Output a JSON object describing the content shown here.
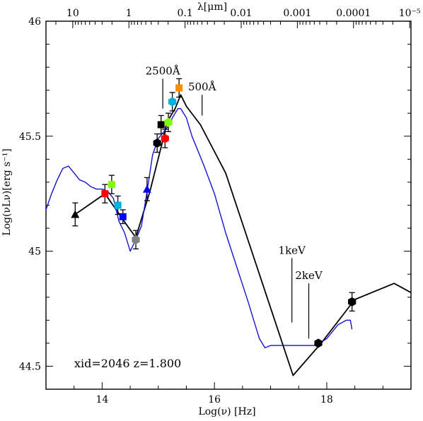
{
  "chart_data": {
    "type": "scatter",
    "xlabel": "Log(ν) [Hz]",
    "ylabel": "Log(νLν)[erg s⁻¹]",
    "top_axis_label": "λ[μm]",
    "xlim": [
      13.0,
      19.5
    ],
    "ylim": [
      44.4,
      46.0
    ],
    "x_ticks": [
      "14",
      "16",
      "18"
    ],
    "y_ticks": [
      "44.5",
      "45",
      "45.5",
      "46"
    ],
    "top_ticks": [
      "10",
      "1",
      "0.1",
      "0.01",
      "0.001",
      "0.0001",
      "10⁻⁵"
    ],
    "annotation": "xid=2046 z=1.800",
    "markers": [
      {
        "label": "2500Å",
        "x": 15.08,
        "y_from": 45.75,
        "y_to": 45.62
      },
      {
        "label": "500Å",
        "x": 15.78,
        "y_from": 45.68,
        "y_to": 45.59
      },
      {
        "label": "1keV",
        "x": 17.38,
        "y_from": 44.97,
        "y_to": 44.69
      },
      {
        "label": "2keV",
        "x": 17.68,
        "y_from": 44.86,
        "y_to": 44.62
      }
    ],
    "grid": false,
    "colors": {
      "model": "#000000",
      "template": "#1414d2",
      "error_bar": "#000000"
    },
    "series": [
      {
        "x": [
          13.52,
          14.05,
          14.45,
          14.6,
          14.85,
          15.1,
          15.15,
          15.3,
          15.4,
          15.5,
          15.75,
          16.2,
          16.8,
          17.4,
          17.9,
          18.5,
          19.2,
          19.5
        ],
        "y": [
          45.16,
          45.25,
          45.11,
          45.06,
          45.26,
          45.5,
          45.56,
          45.62,
          45.68,
          45.63,
          45.55,
          45.34,
          44.9,
          44.46,
          44.6,
          44.79,
          44.86,
          44.82
        ]
      },
      {
        "x": [
          13.0,
          13.1,
          13.2,
          13.3,
          13.4,
          13.5,
          13.6,
          13.7,
          13.8,
          13.9,
          14.0,
          14.1,
          14.2,
          14.3,
          14.4,
          14.5,
          14.6,
          14.7,
          14.8,
          14.9,
          15.0,
          15.1,
          15.2,
          15.25,
          15.3,
          15.35,
          15.4,
          15.5,
          15.6,
          15.8,
          16.0,
          16.2,
          16.4,
          16.6,
          16.7,
          16.8,
          16.9,
          17.0,
          17.2,
          17.4,
          17.6,
          17.8,
          18.0,
          18.2,
          18.35,
          18.42,
          18.45
        ],
        "y": [
          45.18,
          45.25,
          45.31,
          45.36,
          45.37,
          45.34,
          45.31,
          45.3,
          45.28,
          45.27,
          45.27,
          45.26,
          45.23,
          45.13,
          45.08,
          45.0,
          45.05,
          45.11,
          45.26,
          45.42,
          45.49,
          45.52,
          45.55,
          45.58,
          45.6,
          45.62,
          45.62,
          45.58,
          45.5,
          45.38,
          45.25,
          45.08,
          44.93,
          44.78,
          44.7,
          44.62,
          44.58,
          44.59,
          44.59,
          44.59,
          44.59,
          44.59,
          44.62,
          44.68,
          44.7,
          44.7,
          44.66
        ]
      }
    ],
    "points": [
      {
        "x": 13.52,
        "y": 45.16,
        "err": 0.05,
        "shape": "triangle",
        "color": "#000000"
      },
      {
        "x": 14.05,
        "y": 45.25,
        "err": 0.04,
        "shape": "square",
        "color": "#ff0000"
      },
      {
        "x": 14.17,
        "y": 45.29,
        "err": 0.04,
        "shape": "square",
        "color": "#80ff00"
      },
      {
        "x": 14.28,
        "y": 45.2,
        "err": 0.04,
        "shape": "square",
        "color": "#00b0e0"
      },
      {
        "x": 14.37,
        "y": 45.15,
        "err": 0.03,
        "shape": "square",
        "color": "#0000ff"
      },
      {
        "x": 14.6,
        "y": 45.05,
        "err": 0.04,
        "shape": "hexagon",
        "color": "#808080"
      },
      {
        "x": 14.8,
        "y": 45.27,
        "err": 0.05,
        "shape": "triangle",
        "color": "#0000ff"
      },
      {
        "x": 14.98,
        "y": 45.47,
        "err": 0.04,
        "shape": "hexagon",
        "color": "#000000"
      },
      {
        "x": 15.05,
        "y": 45.55,
        "err": 0.04,
        "shape": "square",
        "color": "#000000"
      },
      {
        "x": 15.12,
        "y": 45.49,
        "err": 0.04,
        "shape": "hexagon",
        "color": "#ff0000"
      },
      {
        "x": 15.18,
        "y": 45.56,
        "err": 0.04,
        "shape": "hexagon",
        "color": "#80ff00"
      },
      {
        "x": 15.25,
        "y": 45.65,
        "err": 0.04,
        "shape": "hexagon",
        "color": "#00b0e0"
      },
      {
        "x": 15.37,
        "y": 45.71,
        "err": 0.04,
        "shape": "square",
        "color": "#ff8c00"
      },
      {
        "x": 17.85,
        "y": 44.6,
        "err": 0.01,
        "shape": "hexagon",
        "color": "#000000"
      },
      {
        "x": 18.45,
        "y": 44.78,
        "err": 0.04,
        "shape": "hexagon",
        "color": "#000000"
      }
    ]
  }
}
